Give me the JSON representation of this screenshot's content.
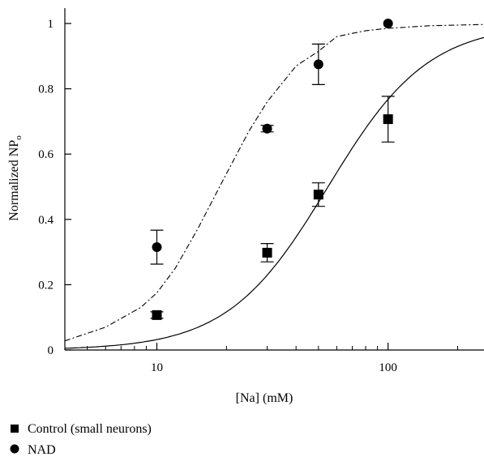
{
  "chart_data": {
    "type": "scatter",
    "xscale": "log",
    "xlim": [
      4,
      260
    ],
    "ylim": [
      0,
      1.05
    ],
    "grid": false,
    "legend_position": "bottom-left",
    "xlabel": "[Na] (mM)",
    "ylabel": {
      "main": "Normalized NP",
      "subscript": "o"
    },
    "x_ticks": [
      10,
      100
    ],
    "x_tick_labels": [
      "10",
      "100"
    ],
    "y_ticks": [
      0,
      0.2,
      0.4,
      0.6,
      0.8,
      1
    ],
    "y_tick_labels": [
      "0",
      "0.2",
      "0.4",
      "0.6",
      "0.8",
      "1"
    ],
    "series": [
      {
        "name": "Control (small neurons)",
        "marker": "square",
        "color": "#000000",
        "points": [
          {
            "x": 10,
            "y": 0.107,
            "err": 0.01
          },
          {
            "x": 30,
            "y": 0.298,
            "err": 0.028
          },
          {
            "x": 50,
            "y": 0.476,
            "err": 0.036
          },
          {
            "x": 100,
            "y": 0.707,
            "err": 0.07
          }
        ],
        "fit": {
          "style": "solid",
          "ec50": 55,
          "hill": 2.0
        }
      },
      {
        "name": "NAD",
        "marker": "circle",
        "color": "#000000",
        "points": [
          {
            "x": 10,
            "y": 0.315,
            "err": 0.052
          },
          {
            "x": 30,
            "y": 0.678,
            "err": 0.01
          },
          {
            "x": 50,
            "y": 0.875,
            "err": 0.062
          },
          {
            "x": 100,
            "y": 1.0,
            "err": 0
          }
        ],
        "fit": {
          "style": "dashdot",
          "curve": [
            [
              4,
              0.028
            ],
            [
              6,
              0.07
            ],
            [
              8.5,
              0.13
            ],
            [
              10,
              0.175
            ],
            [
              12,
              0.25
            ],
            [
              15,
              0.37
            ],
            [
              20,
              0.54
            ],
            [
              25,
              0.67
            ],
            [
              30,
              0.76
            ],
            [
              40,
              0.87
            ],
            [
              50,
              0.915
            ],
            [
              60,
              0.96
            ],
            [
              80,
              0.978
            ],
            [
              100,
              0.985
            ],
            [
              150,
              0.993
            ],
            [
              260,
              0.997
            ]
          ]
        }
      }
    ]
  }
}
